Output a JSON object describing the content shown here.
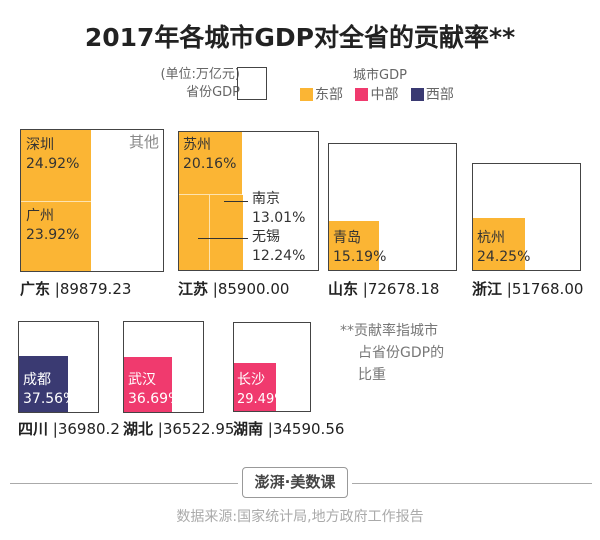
{
  "title": "2017年各城市GDP对全省的贡献率**",
  "legend": {
    "unit": "(单位:万亿元)",
    "province_gdp": "省份GDP",
    "city_gdp": "城市GDP",
    "regions": [
      {
        "name": "东部",
        "color": "#FBB534"
      },
      {
        "name": "中部",
        "color": "#F03A6E"
      },
      {
        "name": "西部",
        "color": "#3A3A72"
      }
    ]
  },
  "chart_data": {
    "type": "treemap",
    "title": "2017年各城市GDP对全省的贡献率**",
    "other_label": "其他",
    "provinces": [
      {
        "name": "广东",
        "gdp": "89879.23",
        "region": "东部",
        "cities": [
          {
            "name": "深圳",
            "share": "24.92%"
          },
          {
            "name": "广州",
            "share": "23.92%"
          }
        ]
      },
      {
        "name": "江苏",
        "gdp": "85900.00",
        "region": "东部",
        "cities": [
          {
            "name": "苏州",
            "share": "20.16%"
          },
          {
            "name": "南京",
            "share": "13.01%"
          },
          {
            "name": "无锡",
            "share": "12.24%"
          }
        ]
      },
      {
        "name": "山东",
        "gdp": "72678.18",
        "region": "东部",
        "cities": [
          {
            "name": "青岛",
            "share": "15.19%"
          }
        ]
      },
      {
        "name": "浙江",
        "gdp": "51768.00",
        "region": "东部",
        "cities": [
          {
            "name": "杭州",
            "share": "24.25%"
          }
        ]
      },
      {
        "name": "四川",
        "gdp": "36980.2",
        "region": "西部",
        "cities": [
          {
            "name": "成都",
            "share": "37.56%"
          }
        ]
      },
      {
        "name": "湖北",
        "gdp": "36522.95",
        "region": "中部",
        "cities": [
          {
            "name": "武汉",
            "share": "36.69%"
          }
        ]
      },
      {
        "name": "湖南",
        "gdp": "34590.56",
        "region": "中部",
        "cities": [
          {
            "name": "长沙",
            "share": "29.49%"
          }
        ]
      }
    ]
  },
  "note": {
    "line1": "**贡献率指城市",
    "line2": "占省份GDP的",
    "line3": "比重"
  },
  "footer": {
    "logo": "澎湃·美数课",
    "source": "数据来源:国家统计局,地方政府工作报告"
  }
}
